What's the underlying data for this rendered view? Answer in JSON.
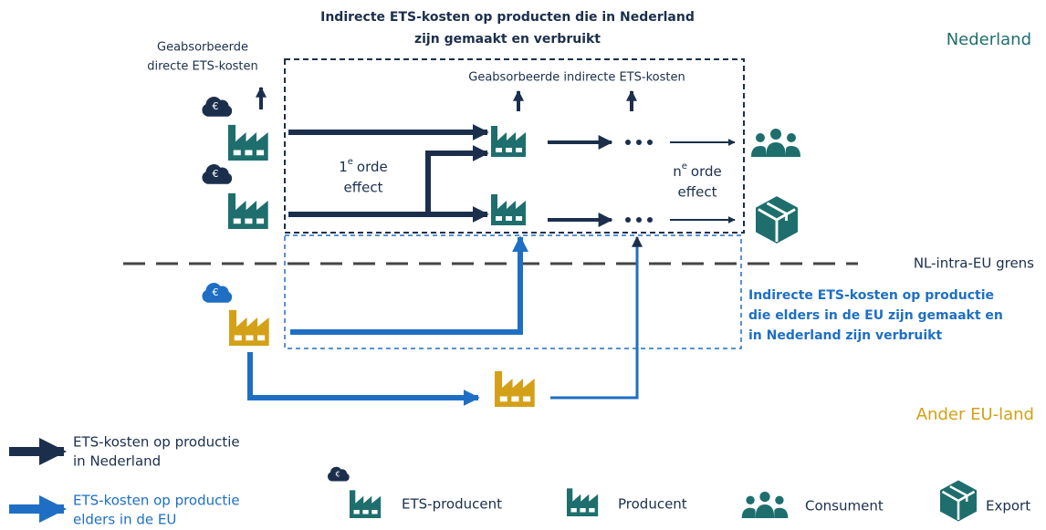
{
  "title": [
    "Indirecte ETS-kosten op producten die in Nederland",
    "zijn gemaakt en verbruikt"
  ],
  "absorbed_direct": [
    "Geabsorbeerde",
    "directe ETS-kosten"
  ],
  "absorbed_indirect": "Geabsorbeerde indirecte ETS-kosten",
  "region_nl": "Nederland",
  "region_eu": "Ander EU-land",
  "border": "NL-intra-EU grens",
  "currency_symbol": "€",
  "first_order": {
    "number": "1",
    "superscript": "e",
    "line1": "orde",
    "line2": "effect"
  },
  "nth_order": {
    "number": "n",
    "superscript": "e",
    "line1": "orde",
    "line2": "effect"
  },
  "eu_box": [
    "Indirecte ETS-kosten op productie",
    "die elders in de EU zijn gemaakt en",
    "in Nederland zijn verbruikt"
  ],
  "legend": {
    "nl_costs": [
      "ETS-kosten op productie",
      "in Nederland"
    ],
    "eu_costs": [
      "ETS-kosten op productie",
      "elders in de EU"
    ],
    "ets_producer": "ETS-producent",
    "producer": "Producent",
    "consumer": "Consument",
    "export": "Export"
  }
}
